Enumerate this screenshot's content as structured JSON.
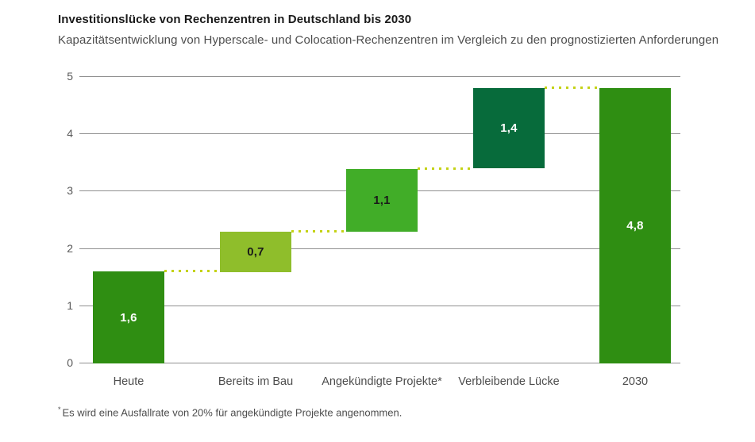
{
  "header": {
    "title": "Investitionslücke von Rechenzentren in Deutschland bis 2030",
    "subtitle": "Kapazitätsentwicklung von Hyperscale- und Colocation-Rechenzentren im Vergleich zu den prognostizierten Anforderungen"
  },
  "footnote": {
    "marker": "*",
    "text": "Es wird eine Ausfallrate von 20% für angekündigte Projekte angenommen."
  },
  "chart_data": {
    "type": "bar",
    "subtype": "waterfall",
    "title": "Investitionslücke von Rechenzentren in Deutschland bis 2030",
    "categories": [
      "Heute",
      "Bereits im Bau",
      "Angekündigte Projekte*",
      "Verbleibende Lücke",
      "2030"
    ],
    "values": [
      1.6,
      0.7,
      1.1,
      1.4,
      4.8
    ],
    "bases": [
      0,
      1.6,
      2.3,
      3.4,
      0
    ],
    "value_labels": [
      "1,6",
      "0,7",
      "1,1",
      "1,4",
      "4,8"
    ],
    "bar_colors": [
      "#2f8e12",
      "#8fbe2b",
      "#41ad28",
      "#076b3b",
      "#2f8e12"
    ],
    "value_label_colors": [
      "#ffffff",
      "#1a1a1a",
      "#1a1a1a",
      "#ffffff",
      "#ffffff"
    ],
    "connector_color": "#c4d216",
    "grid_color": "#909090",
    "grid": true,
    "legend": false,
    "yticks": [
      0,
      1,
      2,
      3,
      4,
      5
    ],
    "ylim": [
      0,
      5
    ],
    "xlabel": "",
    "ylabel": ""
  }
}
